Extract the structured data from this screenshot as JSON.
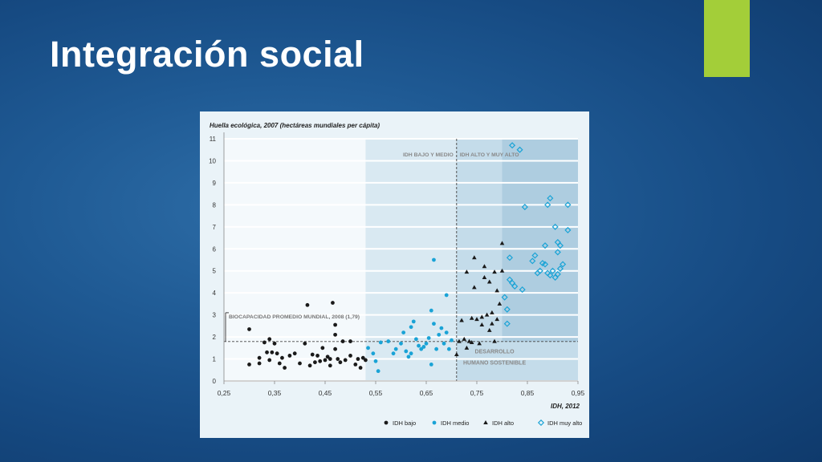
{
  "slide": {
    "title": "Integración social",
    "accent_color": "#a3ce39"
  },
  "chart_data": {
    "type": "scatter",
    "title": "Huella ecológica, 2007 (hectáreas mundiales per cápita)",
    "xlabel": "IDH, 2012",
    "ylabel": "Huella ecológica, 2007 (hectáreas mundiales per cápita)",
    "xlim": [
      0.25,
      0.95
    ],
    "ylim": [
      0,
      11
    ],
    "x_ticks": [
      "0,25",
      "0,35",
      "0,45",
      "0,55",
      "0,65",
      "0,75",
      "0,85",
      "0,95"
    ],
    "y_ticks": [
      "0",
      "1",
      "2",
      "3",
      "4",
      "5",
      "6",
      "7",
      "8",
      "9",
      "10",
      "11"
    ],
    "grid": true,
    "legend_position": "bottom",
    "annotations": {
      "biocapacity_label": "BIOCAPACIDAD PROMEDIO MUNDIAL, 2008 (1,79)",
      "biocapacity_value": 1.79,
      "idh_low_medium": "IDH BAJO Y MEDIO",
      "idh_high": "IDH ALTO Y MUY ALTO",
      "idh_threshold": 0.71,
      "sustainable_line1": "DESARROLLO",
      "sustainable_line2": "HUMANO SOSTENIBLE",
      "shaded_regions": [
        {
          "x": [
            0.53,
            0.71
          ],
          "y": [
            0,
            11
          ],
          "level": "light"
        },
        {
          "x": [
            0.71,
            0.95
          ],
          "y": [
            0,
            11
          ],
          "level": "medium"
        },
        {
          "x": [
            0.8,
            0.95
          ],
          "y": [
            1.79,
            11
          ],
          "level": "dark"
        }
      ]
    },
    "colors": {
      "bajo": "#1a1a1a",
      "medio": "#1aa3d6",
      "alto": "#1a1a1a",
      "muy_alto": "#1aa3d6"
    },
    "series": [
      {
        "name": "IDH bajo",
        "marker": "circle",
        "points": [
          [
            0.3,
            0.75
          ],
          [
            0.3,
            2.35
          ],
          [
            0.32,
            0.8
          ],
          [
            0.32,
            1.05
          ],
          [
            0.33,
            1.75
          ],
          [
            0.335,
            1.3
          ],
          [
            0.34,
            1.9
          ],
          [
            0.34,
            0.95
          ],
          [
            0.345,
            1.3
          ],
          [
            0.35,
            1.7
          ],
          [
            0.355,
            1.25
          ],
          [
            0.36,
            0.8
          ],
          [
            0.365,
            1.05
          ],
          [
            0.37,
            0.6
          ],
          [
            0.38,
            1.15
          ],
          [
            0.39,
            1.25
          ],
          [
            0.4,
            0.8
          ],
          [
            0.41,
            1.7
          ],
          [
            0.415,
            3.45
          ],
          [
            0.42,
            0.7
          ],
          [
            0.425,
            1.2
          ],
          [
            0.43,
            0.85
          ],
          [
            0.435,
            1.15
          ],
          [
            0.44,
            0.9
          ],
          [
            0.445,
            1.5
          ],
          [
            0.45,
            0.95
          ],
          [
            0.455,
            1.1
          ],
          [
            0.46,
            1.0
          ],
          [
            0.46,
            0.7
          ],
          [
            0.465,
            3.55
          ],
          [
            0.47,
            2.55
          ],
          [
            0.47,
            2.1
          ],
          [
            0.47,
            1.45
          ],
          [
            0.475,
            1.0
          ],
          [
            0.48,
            0.85
          ],
          [
            0.485,
            1.8
          ],
          [
            0.49,
            0.95
          ],
          [
            0.5,
            1.8
          ],
          [
            0.5,
            1.15
          ],
          [
            0.51,
            0.75
          ],
          [
            0.515,
            1.0
          ],
          [
            0.52,
            0.6
          ],
          [
            0.525,
            1.05
          ],
          [
            0.53,
            0.95
          ]
        ]
      },
      {
        "name": "IDH medio",
        "marker": "circle",
        "points": [
          [
            0.535,
            1.5
          ],
          [
            0.545,
            1.25
          ],
          [
            0.55,
            0.9
          ],
          [
            0.555,
            0.45
          ],
          [
            0.56,
            1.75
          ],
          [
            0.575,
            1.8
          ],
          [
            0.585,
            1.25
          ],
          [
            0.59,
            1.45
          ],
          [
            0.6,
            1.7
          ],
          [
            0.605,
            2.2
          ],
          [
            0.61,
            1.35
          ],
          [
            0.615,
            1.1
          ],
          [
            0.62,
            1.25
          ],
          [
            0.62,
            2.45
          ],
          [
            0.625,
            2.7
          ],
          [
            0.63,
            1.9
          ],
          [
            0.635,
            1.6
          ],
          [
            0.64,
            1.45
          ],
          [
            0.645,
            1.55
          ],
          [
            0.65,
            1.7
          ],
          [
            0.655,
            1.95
          ],
          [
            0.66,
            3.2
          ],
          [
            0.66,
            0.75
          ],
          [
            0.665,
            2.6
          ],
          [
            0.665,
            5.5
          ],
          [
            0.67,
            1.45
          ],
          [
            0.675,
            2.1
          ],
          [
            0.68,
            2.4
          ],
          [
            0.685,
            1.7
          ],
          [
            0.69,
            2.2
          ],
          [
            0.69,
            3.9
          ],
          [
            0.695,
            1.45
          ],
          [
            0.7,
            1.85
          ]
        ]
      },
      {
        "name": "IDH alto",
        "marker": "triangle",
        "points": [
          [
            0.71,
            1.2
          ],
          [
            0.715,
            1.8
          ],
          [
            0.72,
            2.75
          ],
          [
            0.725,
            1.9
          ],
          [
            0.73,
            4.95
          ],
          [
            0.73,
            1.5
          ],
          [
            0.735,
            1.8
          ],
          [
            0.74,
            2.85
          ],
          [
            0.74,
            1.75
          ],
          [
            0.745,
            4.25
          ],
          [
            0.745,
            5.6
          ],
          [
            0.75,
            2.8
          ],
          [
            0.755,
            1.7
          ],
          [
            0.76,
            2.55
          ],
          [
            0.76,
            2.9
          ],
          [
            0.765,
            4.7
          ],
          [
            0.77,
            3.0
          ],
          [
            0.775,
            4.5
          ],
          [
            0.78,
            2.6
          ],
          [
            0.78,
            3.1
          ],
          [
            0.785,
            4.95
          ],
          [
            0.79,
            2.8
          ],
          [
            0.79,
            4.1
          ],
          [
            0.795,
            3.5
          ],
          [
            0.8,
            5.0
          ],
          [
            0.8,
            6.25
          ],
          [
            0.785,
            1.8
          ],
          [
            0.775,
            2.3
          ],
          [
            0.765,
            5.2
          ]
        ]
      },
      {
        "name": "IDH muy alto",
        "marker": "diamond",
        "points": [
          [
            0.805,
            3.8
          ],
          [
            0.81,
            2.6
          ],
          [
            0.81,
            3.25
          ],
          [
            0.815,
            5.6
          ],
          [
            0.815,
            4.6
          ],
          [
            0.82,
            4.45
          ],
          [
            0.82,
            10.7
          ],
          [
            0.825,
            4.3
          ],
          [
            0.835,
            10.5
          ],
          [
            0.84,
            4.15
          ],
          [
            0.845,
            7.9
          ],
          [
            0.86,
            5.45
          ],
          [
            0.865,
            5.7
          ],
          [
            0.87,
            4.9
          ],
          [
            0.875,
            5.0
          ],
          [
            0.88,
            5.35
          ],
          [
            0.885,
            5.3
          ],
          [
            0.885,
            6.15
          ],
          [
            0.89,
            8.0
          ],
          [
            0.89,
            4.9
          ],
          [
            0.895,
            8.3
          ],
          [
            0.895,
            4.8
          ],
          [
            0.9,
            5.0
          ],
          [
            0.905,
            4.7
          ],
          [
            0.905,
            7.0
          ],
          [
            0.91,
            6.3
          ],
          [
            0.91,
            4.85
          ],
          [
            0.915,
            5.1
          ],
          [
            0.915,
            6.15
          ],
          [
            0.91,
            5.85
          ],
          [
            0.93,
            8.0
          ],
          [
            0.93,
            6.85
          ],
          [
            0.92,
            5.3
          ]
        ]
      }
    ]
  }
}
